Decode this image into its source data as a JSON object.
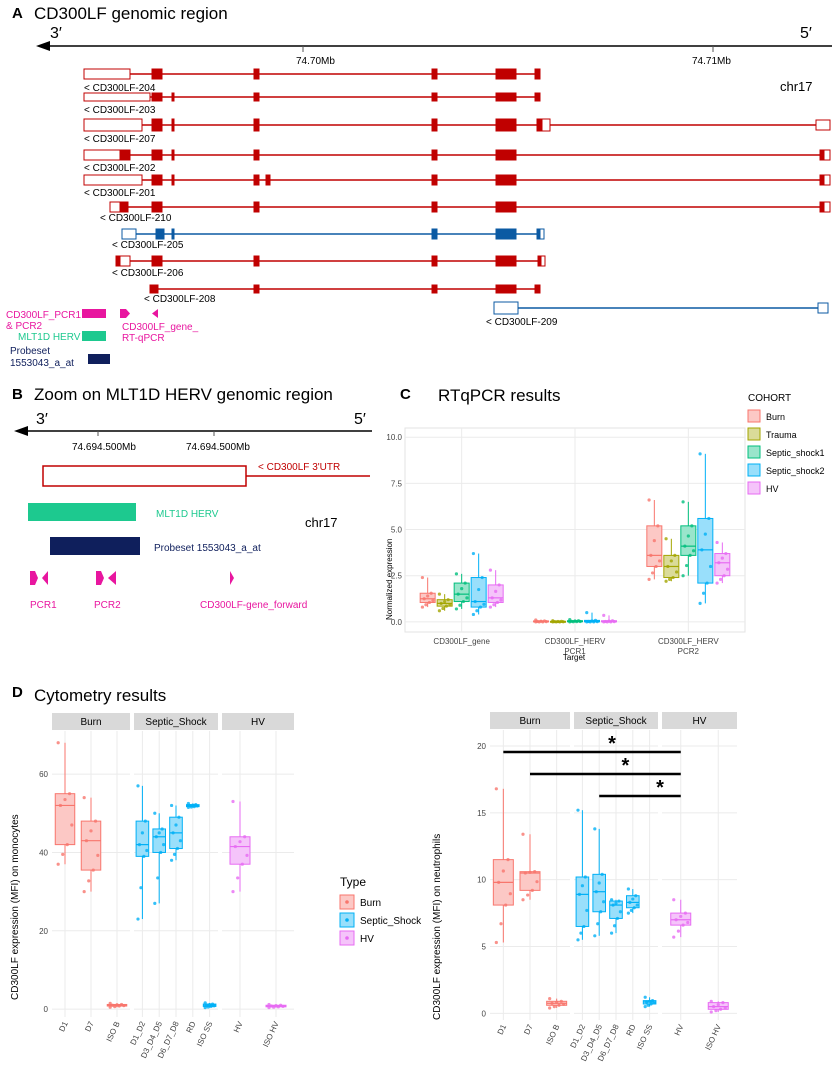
{
  "panelA": {
    "letter": "A",
    "title": "CD300LF genomic region",
    "end_left": "3′",
    "end_right": "5′",
    "ticks": [
      "74.70Mb",
      "74.71Mb"
    ],
    "chr": "chr17",
    "transcripts": [
      "< CD300LF-204",
      "< CD300LF-203",
      "< CD300LF-207",
      "< CD300LF-202",
      "< CD300LF-201",
      "< CD300LF-210",
      "< CD300LF-205",
      "< CD300LF-206",
      "< CD300LF-208",
      "< CD300LF-209"
    ],
    "legend_pcr": [
      "CD300LF_PCR1",
      "& PCR2"
    ],
    "legend_gene": [
      "CD300LF_gene_",
      "RT-qPCR"
    ],
    "legend_herv": "MLT1D HERV",
    "legend_probe": [
      "Probeset",
      "1553043_a_at"
    ]
  },
  "panelB": {
    "letter": "B",
    "title": "Zoom on MLT1D HERV genomic region",
    "end_left": "3′",
    "end_right": "5′",
    "ticks": [
      "74.694.500Mb",
      "74.694.500Mb"
    ],
    "utr": "< CD300LF 3'UTR",
    "herv": "MLT1D HERV",
    "probe": "Probeset 1553043_a_at",
    "chr": "chr17",
    "primers": [
      "PCR1",
      "PCR2",
      "CD300LF-gene_forward"
    ]
  },
  "panelC": {
    "letter": "C",
    "title": "RTqPCR results",
    "legend_title": "COHORT",
    "cohorts": [
      "Burn",
      "Trauma",
      "Septic_shock1",
      "Septic_shock2",
      "HV"
    ],
    "colors": [
      "#f8766d",
      "#a3a500",
      "#00bf7d",
      "#00b0f6",
      "#e76bf3"
    ]
  },
  "panelD": {
    "letter": "D",
    "title": "Cytometry results",
    "legend_title": "Type",
    "legend": [
      "Burn",
      "Septic_Shock",
      "HV"
    ],
    "legend_colors": [
      "#f8766d",
      "#00b0f6",
      "#e76bf3"
    ],
    "star": "*"
  },
  "chart_data": [
    {
      "type": "box",
      "title": "RTqPCR results",
      "xlabel": "Target",
      "ylabel": "Normalized expression",
      "ylim": [
        0,
        10.5
      ],
      "yticks": [
        "0.0",
        "2.5",
        "5.0",
        "7.5",
        "10.0"
      ],
      "categories": [
        "CD300LF_gene",
        "CD300LF_HERV\nPCR1",
        "CD300LF_HERV\nPCR2"
      ],
      "series": [
        {
          "name": "Burn",
          "boxes": [
            [
              0.8,
              1.05,
              1.25,
              1.55,
              2.4
            ],
            [
              0.0,
              0.0,
              0.02,
              0.05,
              0.1
            ],
            [
              2.3,
              3.0,
              3.6,
              5.2,
              6.6
            ]
          ]
        },
        {
          "name": "Trauma",
          "boxes": [
            [
              0.6,
              0.85,
              1.0,
              1.2,
              1.5
            ],
            [
              0.0,
              0.0,
              0.01,
              0.03,
              0.06
            ],
            [
              2.2,
              2.4,
              3.0,
              3.6,
              4.5
            ]
          ]
        },
        {
          "name": "Septic_shock1",
          "boxes": [
            [
              0.7,
              1.1,
              1.5,
              2.1,
              2.6
            ],
            [
              0.0,
              0.01,
              0.03,
              0.06,
              0.12
            ],
            [
              2.5,
              3.6,
              4.1,
              5.2,
              6.5
            ]
          ]
        },
        {
          "name": "Septic_shock2",
          "boxes": [
            [
              0.4,
              0.8,
              1.1,
              2.4,
              3.7
            ],
            [
              0.0,
              0.0,
              0.02,
              0.08,
              0.5
            ],
            [
              1.0,
              2.1,
              3.9,
              5.6,
              9.1
            ]
          ]
        },
        {
          "name": "HV",
          "boxes": [
            [
              0.8,
              1.05,
              1.3,
              2.0,
              2.8
            ],
            [
              0.0,
              0.0,
              0.02,
              0.06,
              0.35
            ],
            [
              2.1,
              2.5,
              3.2,
              3.7,
              4.3
            ]
          ]
        }
      ]
    },
    {
      "type": "box",
      "title": "Cytometry results",
      "ylabel": "CD300LF expression (MFI) on monocytes",
      "ylim": [
        -2,
        71
      ],
      "yticks": [
        "0",
        "20",
        "40",
        "60"
      ],
      "facets": [
        {
          "name": "Burn",
          "categories": [
            "D1",
            "D7",
            "ISO B"
          ]
        },
        {
          "name": "Septic_Shock",
          "categories": [
            "D1_D2",
            "D3_D4_D5",
            "D6_D7_D8",
            "RD",
            "ISO SS"
          ]
        },
        {
          "name": "HV",
          "categories": [
            "HV",
            "ISO HV"
          ]
        }
      ],
      "boxes": [
        {
          "facet": "Burn",
          "category": "D1",
          "type": "Burn",
          "stats": [
            37,
            42,
            52,
            55,
            68
          ]
        },
        {
          "facet": "Burn",
          "category": "D7",
          "type": "Burn",
          "stats": [
            30,
            35.5,
            43,
            48,
            54
          ]
        },
        {
          "facet": "Burn",
          "category": "ISO B",
          "type": "Burn",
          "stats": [
            0.5,
            0.8,
            1.0,
            1.2,
            1.5
          ]
        },
        {
          "facet": "Septic_Shock",
          "category": "D1_D2",
          "type": "Septic_Shock",
          "stats": [
            23,
            39,
            42,
            48,
            57
          ]
        },
        {
          "facet": "Septic_Shock",
          "category": "D3_D4_D5",
          "type": "Septic_Shock",
          "stats": [
            27,
            40,
            44,
            46,
            50
          ]
        },
        {
          "facet": "Septic_Shock",
          "category": "D6_D7_D8",
          "type": "Septic_Shock",
          "stats": [
            38,
            41,
            45,
            49,
            52
          ]
        },
        {
          "facet": "Septic_Shock",
          "category": "RD",
          "type": "Septic_Shock",
          "stats": [
            51.5,
            51.7,
            52,
            52.2,
            52.5
          ]
        },
        {
          "facet": "Septic_Shock",
          "category": "ISO SS",
          "type": "Septic_Shock",
          "stats": [
            0.4,
            0.7,
            1.0,
            1.3,
            1.6
          ]
        },
        {
          "facet": "HV",
          "category": "HV",
          "type": "HV",
          "stats": [
            30,
            37,
            41.5,
            44,
            53
          ]
        },
        {
          "facet": "HV",
          "category": "ISO HV",
          "type": "HV",
          "stats": [
            0.4,
            0.6,
            0.8,
            1.0,
            1.2
          ]
        }
      ]
    },
    {
      "type": "box",
      "ylabel": "CD300LF expression (MFI) on neutrophils",
      "ylim": [
        -0.5,
        21.2
      ],
      "yticks": [
        "0",
        "5",
        "10",
        "15",
        "20"
      ],
      "facets": [
        {
          "name": "Burn",
          "categories": [
            "D1",
            "D7",
            "ISO B"
          ]
        },
        {
          "name": "Septic_Shock",
          "categories": [
            "D1_D2",
            "D3_D4_D5",
            "D6_D7_D8",
            "RD",
            "ISO SS"
          ]
        },
        {
          "name": "HV",
          "categories": [
            "HV",
            "ISO HV"
          ]
        }
      ],
      "boxes": [
        {
          "facet": "Burn",
          "category": "D1",
          "type": "Burn",
          "stats": [
            5.3,
            8.1,
            9.8,
            11.5,
            16.8
          ]
        },
        {
          "facet": "Burn",
          "category": "D7",
          "type": "Burn",
          "stats": [
            8.5,
            9.2,
            10.5,
            10.6,
            13.4
          ]
        },
        {
          "facet": "Burn",
          "category": "ISO B",
          "type": "Burn",
          "stats": [
            0.4,
            0.6,
            0.75,
            0.9,
            1.1
          ]
        },
        {
          "facet": "Septic_Shock",
          "category": "D1_D2",
          "type": "Septic_Shock",
          "stats": [
            5.5,
            6.5,
            8.9,
            10.2,
            15.2
          ]
        },
        {
          "facet": "Septic_Shock",
          "category": "D3_D4_D5",
          "type": "Septic_Shock",
          "stats": [
            5.8,
            7.6,
            9.1,
            10.4,
            13.8
          ]
        },
        {
          "facet": "Septic_Shock",
          "category": "D6_D7_D8",
          "type": "Septic_Shock",
          "stats": [
            6.0,
            7.1,
            8.1,
            8.4,
            8.5
          ]
        },
        {
          "facet": "Septic_Shock",
          "category": "RD",
          "type": "Septic_Shock",
          "stats": [
            7.5,
            7.9,
            8.3,
            8.8,
            9.3
          ]
        },
        {
          "facet": "Septic_Shock",
          "category": "ISO SS",
          "type": "Septic_Shock",
          "stats": [
            0.5,
            0.7,
            0.85,
            0.95,
            1.2
          ]
        },
        {
          "facet": "HV",
          "category": "HV",
          "type": "HV",
          "stats": [
            5.7,
            6.6,
            7.0,
            7.5,
            8.5
          ]
        },
        {
          "facet": "HV",
          "category": "ISO HV",
          "type": "HV",
          "stats": [
            0.1,
            0.3,
            0.5,
            0.8,
            0.9
          ]
        }
      ],
      "significance": [
        {
          "from": "D1",
          "to": "HV",
          "label": "*"
        },
        {
          "from": "D7",
          "to": "HV",
          "label": "*"
        },
        {
          "from": "D3_D4_D5",
          "to": "HV",
          "label": "*"
        }
      ]
    }
  ]
}
